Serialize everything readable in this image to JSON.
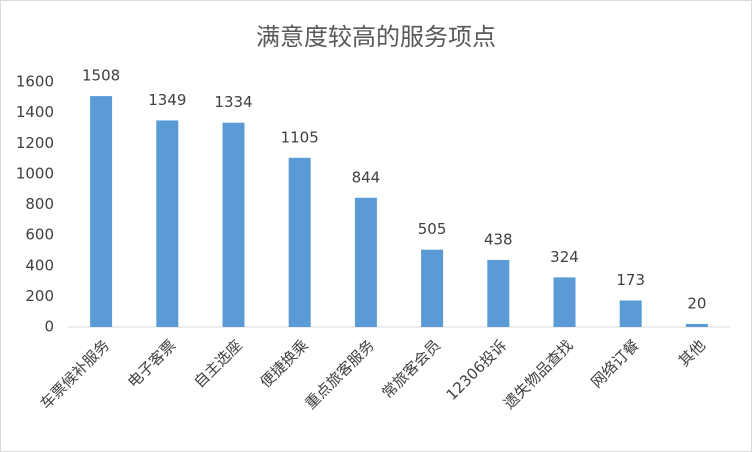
{
  "chart_data": {
    "type": "bar",
    "title": "满意度较高的服务项点",
    "categories": [
      "车票候补服务",
      "电子客票",
      "自主选座",
      "便捷换乘",
      "重点旅客服务",
      "常旅客会员",
      "12306投诉",
      "遗失物品查找",
      "网络订餐",
      "其他"
    ],
    "values": [
      1508,
      1349,
      1334,
      1105,
      844,
      505,
      438,
      324,
      173,
      20
    ],
    "color": "#5b9bd5",
    "ylim": [
      0,
      1600
    ],
    "yticks": [
      0,
      200,
      400,
      600,
      800,
      1000,
      1200,
      1400,
      1600
    ],
    "grid": false
  }
}
